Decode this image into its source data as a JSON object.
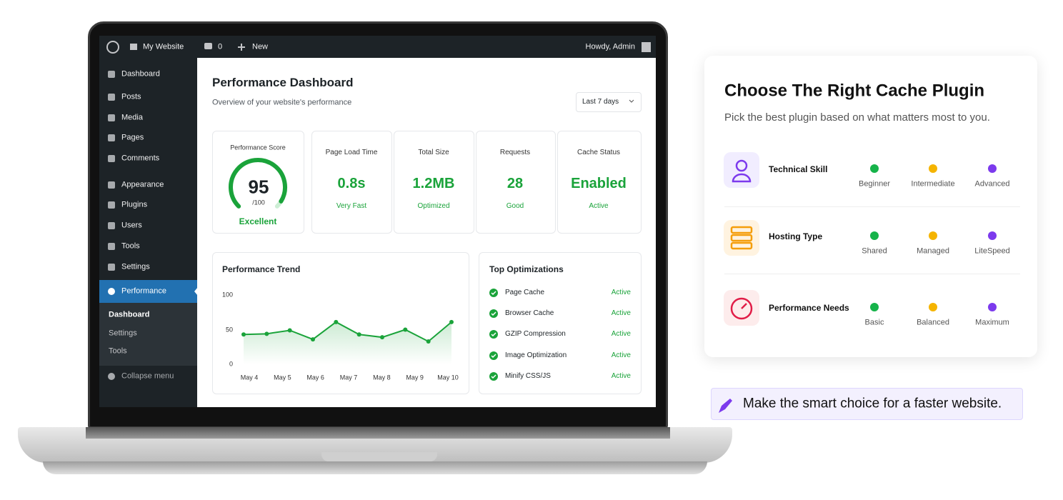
{
  "admin_bar": {
    "site": "My Website",
    "comments": "0",
    "new": "New",
    "greeting": "Howdy, Admin"
  },
  "sidebar": {
    "menu": [
      "Dashboard",
      "Posts",
      "Media",
      "Pages",
      "Comments",
      "Appearance",
      "Plugins",
      "Users",
      "Tools",
      "Settings"
    ],
    "active": "Performance",
    "submenu": [
      "Dashboard",
      "Settings",
      "Tools"
    ],
    "collapse": "Collapse menu"
  },
  "dashboard": {
    "title": "Performance Dashboard",
    "subtitle": "Overview of your website's performance",
    "range": "Last 7 days",
    "score": {
      "label": "Performance Score",
      "value": 95,
      "scale": {
        "value": 100,
        "label": "/100"
      },
      "rating": "Excellent",
      "color": "#1aa33a"
    },
    "stats": [
      {
        "label": "Page Load Time",
        "value": "0.8s",
        "note": "Very Fast"
      },
      {
        "label": "Total Size",
        "value": "1.2MB",
        "note": "Optimized"
      },
      {
        "label": "Requests",
        "value": "28",
        "note": "Good"
      },
      {
        "label": "Cache Status",
        "value": "Enabled",
        "note": "Active"
      }
    ],
    "optimizations": {
      "title": "Top Optimizations",
      "items": [
        {
          "name": "Page Cache",
          "status": "Active"
        },
        {
          "name": "Browser Cache",
          "status": "Active"
        },
        {
          "name": "GZIP Compression",
          "status": "Active"
        },
        {
          "name": "Image Optimization",
          "status": "Active"
        },
        {
          "name": "Minify CSS/JS",
          "status": "Active"
        }
      ]
    }
  },
  "chart_data": {
    "type": "line",
    "title": "Performance Trend",
    "x_labels": [
      "May 4",
      "May 5",
      "May 6",
      "May 7",
      "May 8",
      "May 9",
      "May 10"
    ],
    "values": [
      43,
      44,
      49,
      36,
      61,
      43,
      39,
      50,
      33,
      61
    ],
    "ylim": [
      0,
      100
    ],
    "yticks": [
      0,
      50,
      100
    ],
    "color": "#1aa33a"
  },
  "panel": {
    "title": "Choose The Right Cache Plugin",
    "subtitle": "Pick the best plugin based on what matters most to you.",
    "dot_colors": [
      "#16b34a",
      "#f5b400",
      "#7c3aed"
    ],
    "rows": [
      {
        "label": "Technical Skill",
        "options": [
          "Beginner",
          "Intermediate",
          "Advanced"
        ]
      },
      {
        "label": "Hosting Type",
        "options": [
          "Shared",
          "Managed",
          "LiteSpeed"
        ]
      },
      {
        "label": "Performance Needs",
        "options": [
          "Basic",
          "Balanced",
          "Maximum"
        ]
      }
    ]
  },
  "banner": "Make the smart choice for a faster website."
}
